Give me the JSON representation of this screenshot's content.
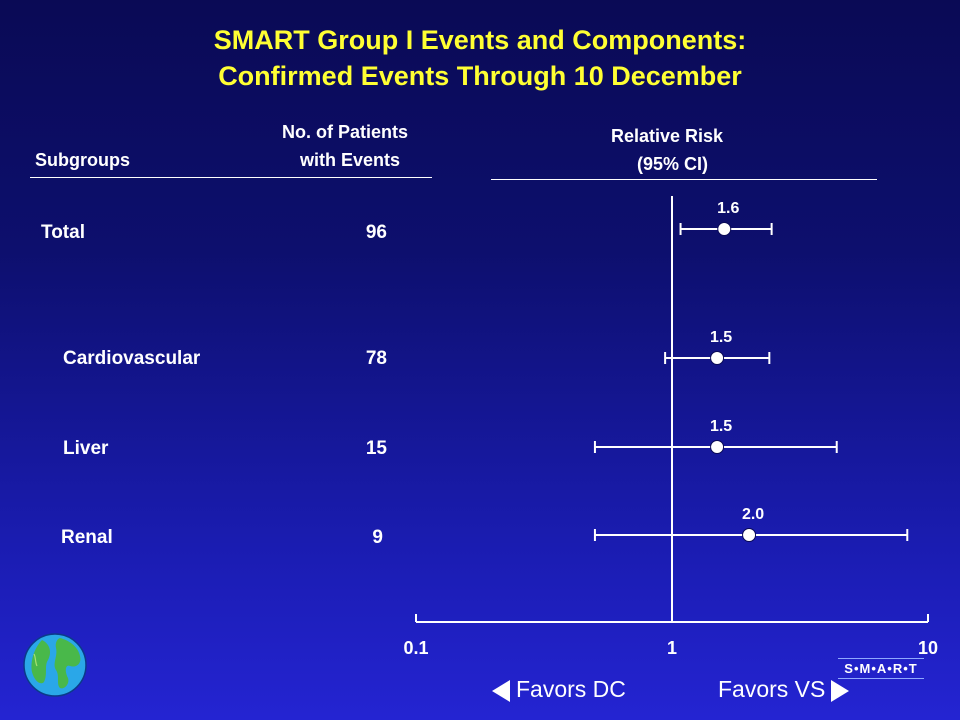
{
  "title": {
    "line1": "SMART Group I Events and Components:",
    "line2": "Confirmed Events Through 10 December"
  },
  "headers": {
    "subgroups": "Subgroups",
    "patients_line1": "No. of Patients",
    "patients_line2": "with Events",
    "rr_line1": "Relative Risk",
    "rr_line2": "(95% CI)"
  },
  "favors": {
    "left": "Favors DC",
    "right": "Favors VS"
  },
  "logo_text": "S•M•A•R•T",
  "chart_data": {
    "type": "forest",
    "xscale": "log",
    "xlim": [
      0.1,
      10
    ],
    "xticks": [
      0.1,
      1,
      10
    ],
    "xtick_labels": [
      "0.1",
      "1",
      "10"
    ],
    "reference_line": 1,
    "rows": [
      {
        "label": "Total",
        "count": "96",
        "rr": 1.6,
        "rr_label": "1.6",
        "ci": [
          1.08,
          2.45
        ]
      },
      {
        "label": "Cardiovascular",
        "count": "78",
        "rr": 1.5,
        "rr_label": "1.5",
        "ci": [
          0.94,
          2.4
        ]
      },
      {
        "label": "Liver",
        "count": "15",
        "rr": 1.5,
        "rr_label": "1.5",
        "ci": [
          0.5,
          4.4
        ]
      },
      {
        "label": "Renal",
        "count": "9",
        "rr": 2.0,
        "rr_label": "2.0",
        "ci": [
          0.5,
          8.3
        ]
      }
    ]
  }
}
